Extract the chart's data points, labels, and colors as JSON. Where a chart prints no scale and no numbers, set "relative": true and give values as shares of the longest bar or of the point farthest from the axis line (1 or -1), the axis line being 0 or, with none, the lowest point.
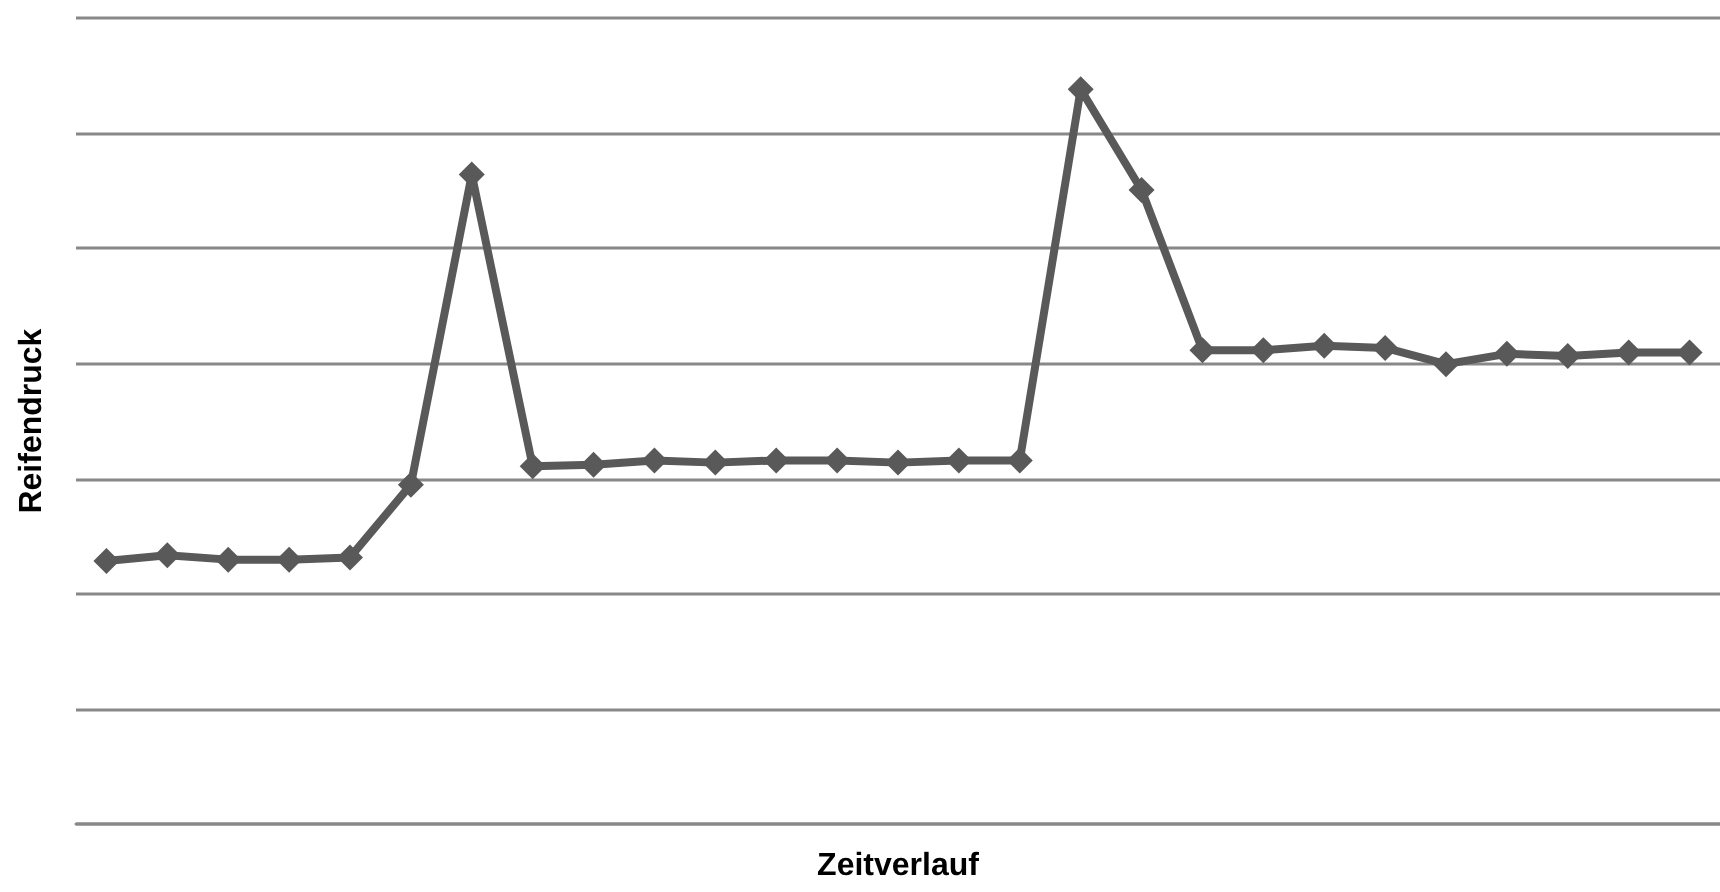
{
  "chart_data": {
    "type": "line",
    "relative": true,
    "xlabel": "Zeitverlauf",
    "ylabel": "Reifendruck",
    "categories": [
      null,
      null,
      null,
      null,
      null,
      null,
      null,
      null,
      null,
      null,
      null,
      null,
      null,
      null,
      null,
      null,
      null,
      null,
      null,
      null,
      null,
      null,
      null,
      null,
      null,
      null,
      null
    ],
    "series": [
      {
        "color": "#595959",
        "values": [
          0.358,
          0.366,
          0.36,
          0.36,
          0.363,
          0.462,
          0.884,
          0.487,
          0.489,
          0.495,
          0.492,
          0.495,
          0.495,
          0.492,
          0.495,
          0.495,
          1,
          0.863,
          0.645,
          0.645,
          0.651,
          0.648,
          0.626,
          0.64,
          0.637,
          0.642,
          0.642
        ]
      }
    ],
    "grid": "y",
    "marker": "diamond",
    "line_style": "solid"
  }
}
